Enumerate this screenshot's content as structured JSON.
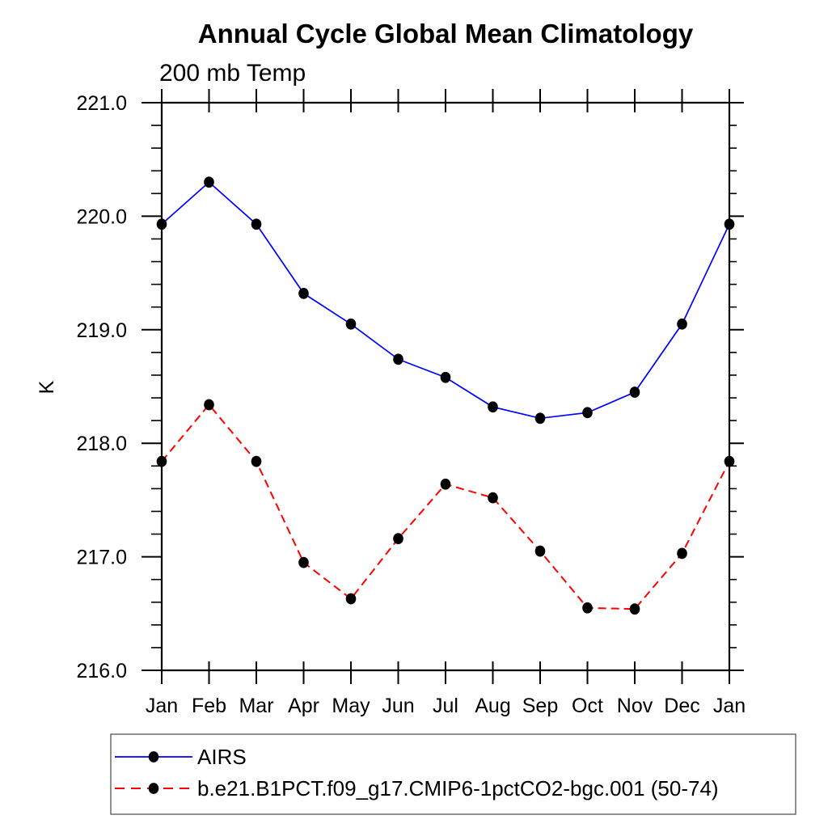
{
  "page": {
    "background_color": "#ffffff",
    "axis_color": "#000000",
    "marker_color": "#000000"
  },
  "chart_data": {
    "type": "line",
    "title": "Annual Cycle Global Mean Climatology",
    "subtitle": "200 mb Temp",
    "xlabel": "",
    "ylabel": "K",
    "categories": [
      "Jan",
      "Feb",
      "Mar",
      "Apr",
      "May",
      "Jun",
      "Jul",
      "Aug",
      "Sep",
      "Oct",
      "Nov",
      "Dec",
      "Jan"
    ],
    "ylim": [
      216.0,
      221.0
    ],
    "ytick_major_step": 1.0,
    "ytick_minor_step": 0.2,
    "ytick_label_format": "one_decimal",
    "grid": "off",
    "legend_position": "bottom-left-box",
    "series": [
      {
        "name": "AIRS",
        "color": "#0000ff",
        "line_style": "solid",
        "marker": "filled-circle",
        "marker_color": "#000000",
        "values": [
          219.93,
          220.3,
          219.93,
          219.32,
          219.05,
          218.74,
          218.58,
          218.32,
          218.22,
          218.27,
          218.45,
          219.05,
          219.93
        ]
      },
      {
        "name": "b.e21.B1PCT.f09_g17.CMIP6-1pctCO2-bgc.001 (50-74)",
        "color": "#ff0000",
        "line_style": "dashed",
        "marker": "filled-circle",
        "marker_color": "#000000",
        "values": [
          217.84,
          218.34,
          217.84,
          216.95,
          216.63,
          217.16,
          217.64,
          217.52,
          217.05,
          216.55,
          216.54,
          217.03,
          217.84
        ]
      }
    ]
  }
}
